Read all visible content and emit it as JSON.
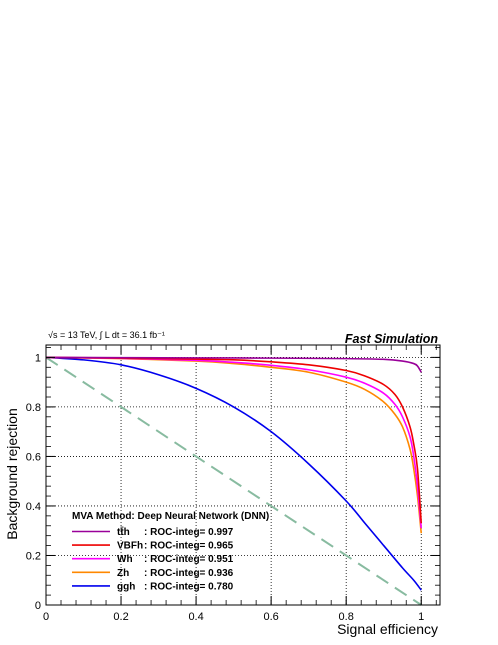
{
  "chart_data": {
    "type": "line",
    "xlabel": "Signal efficiency",
    "ylabel": "Background rejection",
    "xlim": [
      0,
      1.05
    ],
    "ylim": [
      0,
      1.05
    ],
    "x_ticks": [
      "0",
      "0.2",
      "0.4",
      "0.6",
      "0.8",
      "1"
    ],
    "y_ticks": [
      "0",
      "0.2",
      "0.4",
      "0.6",
      "0.8",
      "1"
    ],
    "grid": true,
    "top_left_label": "√s = 13 TeV, ∫ L dt = 36.1 fb⁻¹",
    "top_right_label": "Fast Simulation",
    "legend_title": "MVA Method:  Deep Neural Network (DNN)",
    "legend_position": "bottom-left",
    "reference_line": {
      "x": [
        0,
        1
      ],
      "y": [
        1,
        0
      ],
      "color": "#88bba0",
      "style": "dashed"
    },
    "series": [
      {
        "name": "tt̄h",
        "label": ": ROC-integ= 0.997",
        "color": "#990099",
        "x": [
          0,
          0.2,
          0.4,
          0.6,
          0.8,
          0.9,
          0.95,
          0.98,
          0.99,
          1.0
        ],
        "y": [
          1.0,
          0.999,
          0.998,
          0.997,
          0.995,
          0.992,
          0.985,
          0.975,
          0.965,
          0.94
        ]
      },
      {
        "name": "VBFh",
        "label": ": ROC-integ= 0.965",
        "color": "#ee0000",
        "x": [
          0,
          0.2,
          0.4,
          0.5,
          0.6,
          0.7,
          0.8,
          0.85,
          0.9,
          0.93,
          0.95,
          0.97,
          0.98,
          0.99,
          1.0
        ],
        "y": [
          1.0,
          0.997,
          0.993,
          0.99,
          0.982,
          0.97,
          0.947,
          0.925,
          0.89,
          0.85,
          0.8,
          0.72,
          0.65,
          0.55,
          0.33
        ]
      },
      {
        "name": "Wh",
        "label": ": ROC-integ= 0.951",
        "color": "#ff00ff",
        "x": [
          0,
          0.2,
          0.4,
          0.5,
          0.6,
          0.7,
          0.8,
          0.85,
          0.9,
          0.93,
          0.95,
          0.97,
          0.98,
          0.99,
          1.0
        ],
        "y": [
          1.0,
          0.996,
          0.988,
          0.98,
          0.968,
          0.95,
          0.92,
          0.895,
          0.855,
          0.81,
          0.76,
          0.68,
          0.6,
          0.48,
          0.31
        ]
      },
      {
        "name": "Zh",
        "label": ": ROC-integ= 0.936",
        "color": "#ff8800",
        "x": [
          0,
          0.2,
          0.4,
          0.5,
          0.6,
          0.7,
          0.8,
          0.85,
          0.9,
          0.93,
          0.95,
          0.97,
          0.98,
          0.99,
          1.0
        ],
        "y": [
          1.0,
          0.995,
          0.985,
          0.975,
          0.96,
          0.94,
          0.9,
          0.87,
          0.82,
          0.77,
          0.72,
          0.63,
          0.55,
          0.44,
          0.29
        ]
      },
      {
        "name": "ggh",
        "label": ": ROC-integ= 0.780",
        "color": "#0000ee",
        "x": [
          0,
          0.1,
          0.2,
          0.3,
          0.4,
          0.5,
          0.6,
          0.7,
          0.8,
          0.85,
          0.9,
          0.95,
          0.98,
          1.0
        ],
        "y": [
          1.0,
          0.99,
          0.97,
          0.93,
          0.875,
          0.8,
          0.7,
          0.57,
          0.42,
          0.33,
          0.24,
          0.15,
          0.1,
          0.06
        ]
      }
    ]
  }
}
